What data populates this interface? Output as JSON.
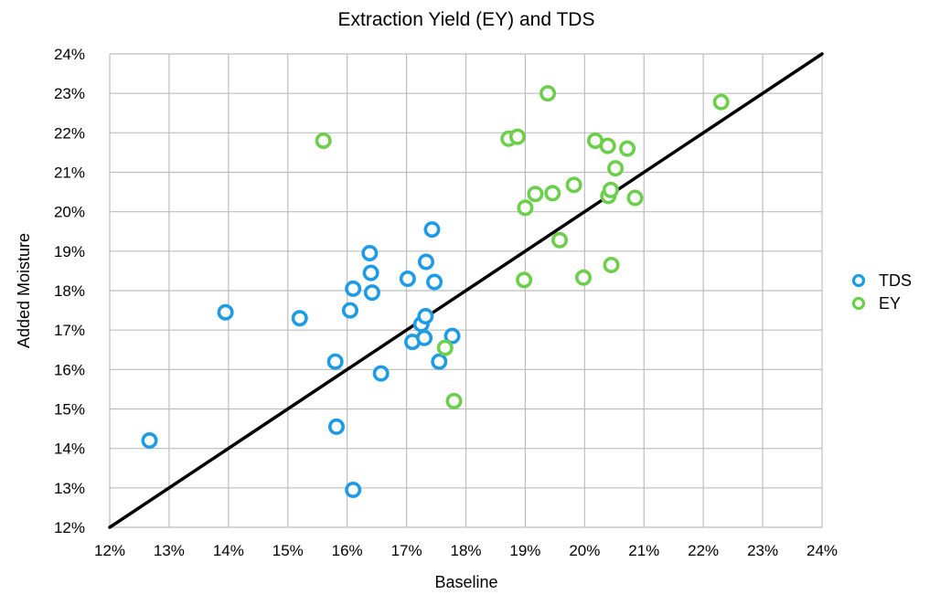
{
  "chart_data": {
    "type": "scatter",
    "title": "Extraction Yield (EY) and TDS",
    "xlabel": "Baseline",
    "ylabel": "Added Moisture",
    "xlim": [
      12,
      24
    ],
    "ylim": [
      12,
      24
    ],
    "x_ticks": [
      "12%",
      "13%",
      "14%",
      "15%",
      "16%",
      "17%",
      "18%",
      "19%",
      "20%",
      "21%",
      "22%",
      "23%",
      "24%"
    ],
    "y_ticks": [
      "12%",
      "13%",
      "14%",
      "15%",
      "16%",
      "17%",
      "18%",
      "19%",
      "20%",
      "21%",
      "22%",
      "23%",
      "24%"
    ],
    "grid": true,
    "legend_position": "right",
    "reference_line": {
      "x": [
        12,
        24
      ],
      "y": [
        12,
        24
      ],
      "color": "#000000"
    },
    "series": [
      {
        "name": "TDS",
        "color": "#1e9be6",
        "points": [
          [
            12.67,
            14.2
          ],
          [
            13.95,
            17.45
          ],
          [
            15.2,
            17.3
          ],
          [
            15.8,
            16.2
          ],
          [
            15.82,
            14.55
          ],
          [
            16.05,
            17.5
          ],
          [
            16.1,
            18.05
          ],
          [
            16.1,
            12.95
          ],
          [
            16.38,
            18.95
          ],
          [
            16.4,
            18.45
          ],
          [
            16.42,
            17.95
          ],
          [
            16.57,
            15.9
          ],
          [
            17.02,
            18.3
          ],
          [
            17.1,
            16.7
          ],
          [
            17.25,
            17.15
          ],
          [
            17.3,
            16.8
          ],
          [
            17.32,
            17.35
          ],
          [
            17.33,
            18.73
          ],
          [
            17.43,
            19.55
          ],
          [
            17.47,
            18.22
          ],
          [
            17.55,
            16.2
          ],
          [
            17.77,
            16.85
          ]
        ]
      },
      {
        "name": "EY",
        "color": "#6ccf4c",
        "points": [
          [
            15.6,
            21.8
          ],
          [
            17.65,
            16.55
          ],
          [
            17.8,
            15.2
          ],
          [
            18.72,
            21.85
          ],
          [
            18.87,
            21.9
          ],
          [
            18.98,
            18.27
          ],
          [
            19.0,
            20.1
          ],
          [
            19.17,
            20.45
          ],
          [
            19.38,
            23.0
          ],
          [
            19.46,
            20.47
          ],
          [
            19.58,
            19.28
          ],
          [
            19.82,
            20.68
          ],
          [
            19.98,
            18.33
          ],
          [
            20.18,
            21.8
          ],
          [
            20.39,
            21.67
          ],
          [
            20.4,
            20.4
          ],
          [
            20.44,
            20.55
          ],
          [
            20.45,
            18.65
          ],
          [
            20.52,
            21.1
          ],
          [
            20.72,
            21.6
          ],
          [
            20.85,
            20.35
          ],
          [
            22.3,
            22.78
          ]
        ]
      }
    ]
  }
}
